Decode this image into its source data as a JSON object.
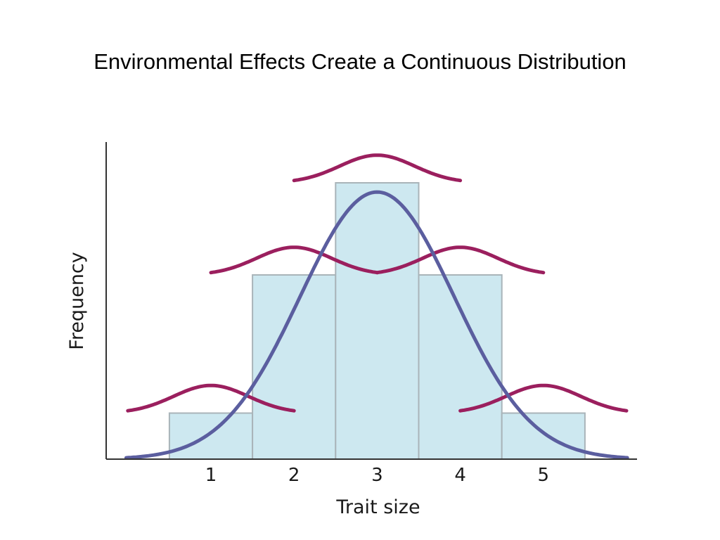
{
  "title": "Environmental Effects Create a Continuous Distribution",
  "chart_data": {
    "type": "bar",
    "categories": [
      "1",
      "2",
      "3",
      "4",
      "5"
    ],
    "values": [
      1,
      4,
      6,
      4,
      1
    ],
    "xlabel": "Trait size",
    "ylabel": "Frequency",
    "ylim": [
      0,
      6.6
    ],
    "y_ticks_shown": false,
    "grid": false,
    "overlays": [
      {
        "kind": "normal-curve",
        "role": "overall distribution",
        "mean": 3,
        "sd": 0.93,
        "peak": 5.8,
        "color": "#5b5e9f"
      },
      {
        "kind": "environmental-variation-curves",
        "centers": [
          1,
          2,
          3,
          4,
          5
        ],
        "baselines": [
          1,
          4,
          6,
          4,
          1
        ],
        "sd": 0.45,
        "amplitude": 0.6,
        "color": "#9b1f5e"
      }
    ],
    "colors": {
      "bar_fill": "#cde8f0",
      "bar_stroke": "#a9b4b9",
      "axis": "#333333"
    }
  }
}
